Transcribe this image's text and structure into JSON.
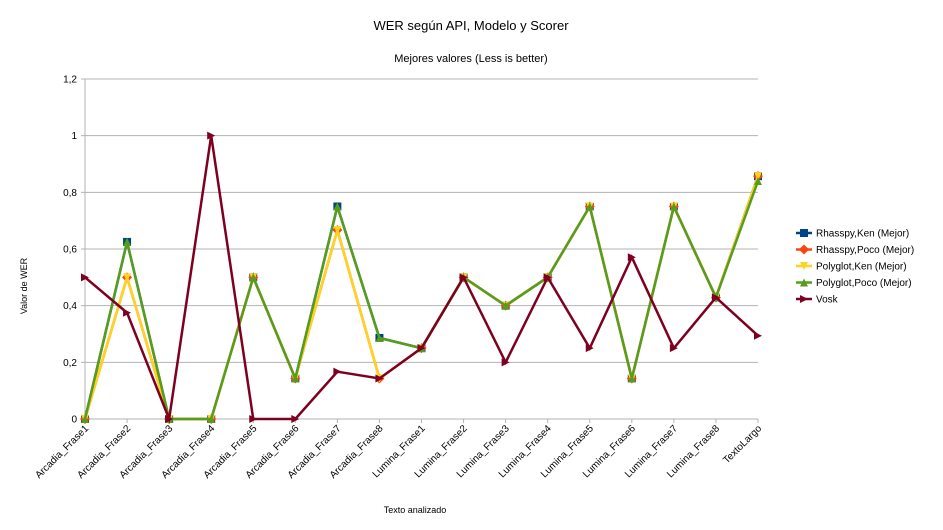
{
  "chart_data": {
    "type": "line",
    "title": "WER según API, Modelo y Scorer",
    "subtitle": "Mejores valores (Less is better)",
    "xlabel": "Texto analizado",
    "ylabel": "Valor de WER",
    "ylim": [
      0,
      1.2
    ],
    "yticks": [
      "0",
      "0,2",
      "0,4",
      "0,6",
      "0,8",
      "1",
      "1,2"
    ],
    "grid": "horizontal",
    "legend_position": "right",
    "categories": [
      "Arcadia_Frase1",
      "Arcadia_Frase2",
      "Arcadia_Frase3",
      "Arcadia_Frase4",
      "Arcadia_Frase5",
      "Arcadia_Frase6",
      "Arcadia_Frase7",
      "Arcadia_Frase8",
      "Lumina_Frase1",
      "Lumina_Frase2",
      "Lumina_Frase3",
      "Lumina_Frase4",
      "Lumina_Frase5",
      "Lumina_Frase6",
      "Lumina_Frase7",
      "Lumina_Frase8",
      "TextoLargo"
    ],
    "series": [
      {
        "name": "Rhasspy,Ken (Mejor)",
        "color": "#004586",
        "marker": "square",
        "values": [
          0,
          0.625,
          0,
          0,
          0.5,
          0.143,
          0.75,
          0.286,
          0.25,
          0.5,
          0.4,
          0.5,
          0.75,
          0.143,
          0.75,
          0.429,
          0.857
        ]
      },
      {
        "name": "Rhasspy,Poco (Mejor)",
        "color": "#ff420e",
        "marker": "diamond",
        "values": [
          0,
          0.5,
          0,
          0,
          0.5,
          0.143,
          0.667,
          0.143,
          0.25,
          0.5,
          0.4,
          0.5,
          0.75,
          0.143,
          0.75,
          0.429,
          0.857
        ]
      },
      {
        "name": "Polyglot,Ken (Mejor)",
        "color": "#ffd320",
        "marker": "triangle-down",
        "values": [
          0,
          0.5,
          0,
          0,
          0.5,
          0.143,
          0.667,
          0.143,
          0.25,
          0.5,
          0.4,
          0.5,
          0.75,
          0.143,
          0.75,
          0.429,
          0.857
        ]
      },
      {
        "name": "Polyglot,Poco (Mejor)",
        "color": "#579d1c",
        "marker": "triangle-up",
        "values": [
          0,
          0.625,
          0,
          0,
          0.5,
          0.143,
          0.75,
          0.286,
          0.25,
          0.5,
          0.4,
          0.5,
          0.75,
          0.143,
          0.75,
          0.429,
          0.84
        ]
      },
      {
        "name": "Vosk",
        "color": "#7e0021",
        "marker": "triangle-right",
        "values": [
          0.5,
          0.375,
          0,
          1,
          0,
          0,
          0.167,
          0.143,
          0.25,
          0.5,
          0.2,
          0.5,
          0.25,
          0.571,
          0.25,
          0.429,
          0.294
        ]
      }
    ]
  }
}
